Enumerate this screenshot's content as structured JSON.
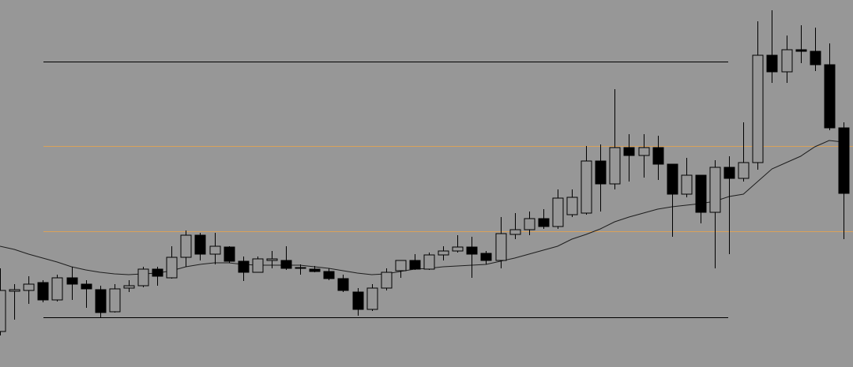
{
  "chart_data": {
    "type": "candlestick",
    "ylim": [
      0,
      465
    ],
    "background": "#979797",
    "up_color": "#979797",
    "down_color": "#000000",
    "open": [
      45,
      96,
      97,
      107,
      85,
      113,
      105,
      98,
      70,
      100,
      103,
      124,
      113,
      139,
      167,
      143,
      152,
      134,
      120,
      135,
      135,
      125,
      124,
      121,
      112,
      95,
      73,
      100,
      122,
      135,
      124,
      142,
      147,
      152,
      144,
      135,
      168,
      174,
      188,
      178,
      193,
      195,
      261,
      232,
      278,
      268,
      278,
      257,
      219,
      243,
      196,
      253,
      239,
      259,
      395,
      374,
      402,
      400,
      383,
      303
    ],
    "high": [
      125,
      105,
      115,
      110,
      117,
      127,
      110,
      103,
      105,
      110,
      127,
      127,
      153,
      173,
      170,
      170,
      153,
      140,
      140,
      147,
      153,
      130,
      128,
      125,
      117,
      100,
      105,
      125,
      135,
      143,
      145,
      153,
      167,
      165,
      147,
      190,
      195,
      197,
      200,
      225,
      225,
      280,
      282,
      352,
      295,
      295,
      293,
      257,
      265,
      243,
      262,
      267,
      310,
      438,
      452,
      420,
      433,
      430,
      410,
      310
    ],
    "low": [
      40,
      60,
      80,
      82,
      83,
      85,
      75,
      63,
      69,
      95,
      101,
      103,
      112,
      127,
      135,
      130,
      132,
      109,
      120,
      125,
      123,
      117,
      120,
      110,
      95,
      65,
      71,
      97,
      113,
      123,
      123,
      135,
      145,
      113,
      130,
      125,
      162,
      167,
      175,
      175,
      190,
      193,
      197,
      225,
      235,
      240,
      237,
      165,
      215,
      182,
      125,
      143,
      235,
      250,
      360,
      360,
      385,
      375,
      300,
      162
    ],
    "close": [
      97,
      98,
      105,
      85,
      113,
      105,
      99,
      69,
      99,
      103,
      124,
      115,
      139,
      167,
      143,
      153,
      134,
      120,
      137,
      137,
      125,
      126,
      121,
      112,
      97,
      73,
      100,
      120,
      135,
      124,
      142,
      147,
      152,
      143,
      135,
      169,
      174,
      188,
      178,
      214,
      215,
      261,
      232,
      278,
      268,
      278,
      257,
      219,
      243,
      196,
      253,
      239,
      259,
      395,
      374,
      402,
      400,
      383,
      303,
      220
    ],
    "ma": {
      "color": "#1e1e1e",
      "values": [
        153,
        149,
        143,
        138,
        133,
        127,
        123,
        120,
        118,
        117,
        118,
        119,
        122,
        127,
        130,
        132,
        132,
        130,
        129,
        129,
        129,
        129,
        127,
        125,
        122,
        119,
        117,
        118,
        121,
        124,
        125,
        127,
        128,
        129,
        130,
        134,
        138,
        143,
        148,
        153,
        162,
        168,
        175,
        184,
        190,
        195,
        200,
        203,
        205,
        207,
        210,
        216,
        219,
        235,
        251,
        259,
        267,
        279,
        287,
        285
      ]
    },
    "levels": [
      {
        "value": 387,
        "color": "#000000"
      },
      {
        "value": 280,
        "color": "#d9a15a"
      },
      {
        "value": 172,
        "color": "#d9a15a"
      },
      {
        "value": 63,
        "color": "#000000"
      }
    ]
  }
}
